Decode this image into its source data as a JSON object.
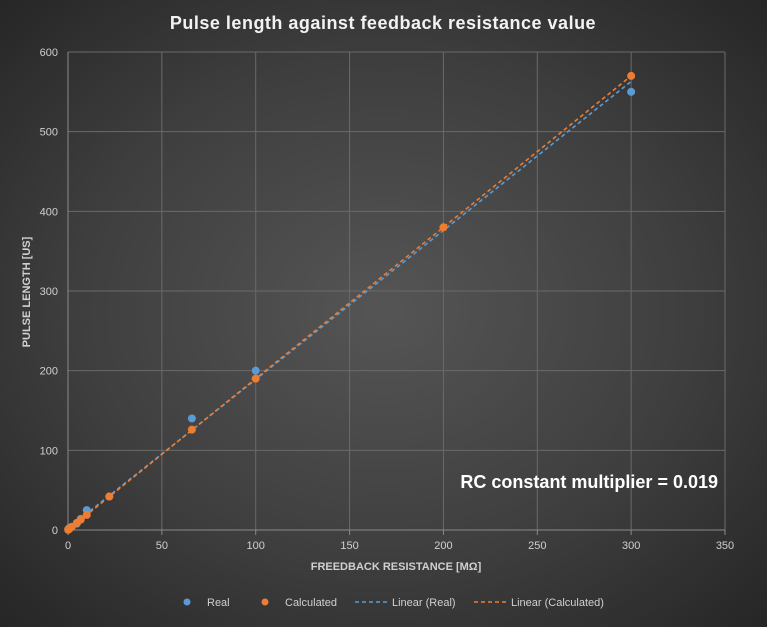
{
  "chart_data": {
    "type": "scatter",
    "title": "Pulse length against feedback resistance value",
    "xlabel": "FREEDBACK RESISTANCE [MΩ]",
    "ylabel": "PULSE LENGTH [US]",
    "xlim": [
      0,
      350
    ],
    "ylim": [
      0,
      600
    ],
    "xticks": [
      0,
      50,
      100,
      150,
      200,
      250,
      300,
      350
    ],
    "yticks": [
      0,
      100,
      200,
      300,
      400,
      500,
      600
    ],
    "grid": true,
    "legend_position": "bottom",
    "annotation": "RC constant multiplier = 0.019",
    "series": [
      {
        "name": "Real",
        "color": "#5b9bd5",
        "x": [
          0.1,
          0.5,
          1,
          2,
          4.7,
          6.8,
          10,
          22,
          66,
          100,
          300
        ],
        "y": [
          1,
          2,
          3,
          4,
          8,
          14,
          25,
          42,
          140,
          200,
          550
        ]
      },
      {
        "name": "Calculated",
        "color": "#ed7d31",
        "x": [
          0.1,
          0.5,
          1,
          2,
          4.7,
          6.8,
          10,
          22,
          66,
          100,
          200,
          300
        ],
        "y": [
          0.2,
          1,
          2,
          4,
          9,
          13,
          19,
          42,
          126,
          190,
          380,
          570
        ]
      }
    ],
    "trendlines": [
      {
        "name": "Linear (Real)",
        "color": "#5b9bd5",
        "x": [
          0,
          300
        ],
        "y": [
          2,
          563
        ]
      },
      {
        "name": "Linear (Calculated)",
        "color": "#ed7d31",
        "x": [
          0,
          300
        ],
        "y": [
          0,
          570
        ]
      }
    ]
  }
}
